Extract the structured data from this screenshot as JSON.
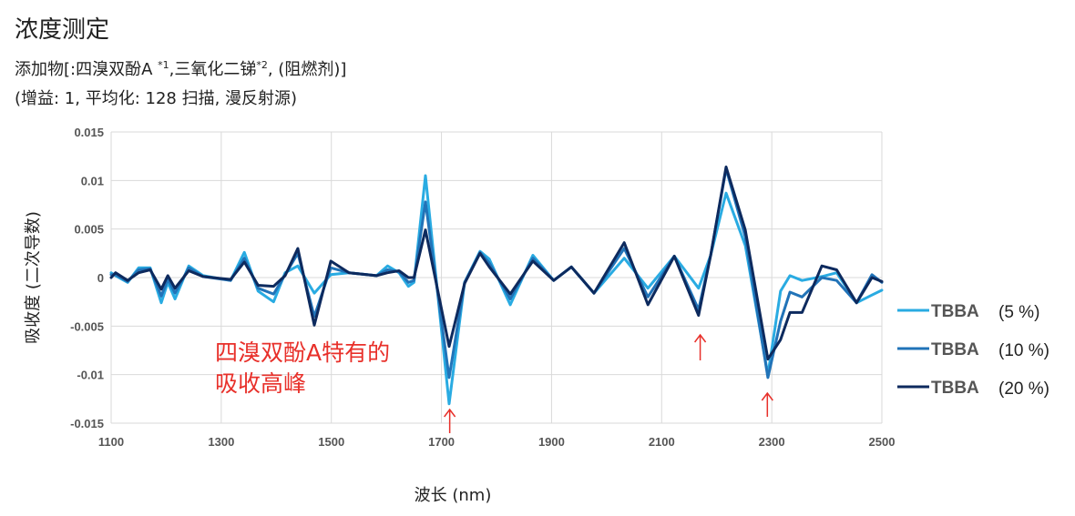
{
  "header": {
    "title": "浓度测定",
    "subtitle_parts": [
      "添加物[:四溴双酚A ",
      "*1",
      ",三氧化二锑",
      "*2",
      ", (阻燃剂)]"
    ],
    "conditions": "(增益: 1,  平均化: 128 扫描, 漫反射源)"
  },
  "annotation": {
    "line1": "四溴双酚A特有的",
    "line2": "吸收高峰",
    "color": "#e8302a",
    "arrow_x_nm": [
      1715,
      2170,
      2292
    ]
  },
  "chart_data": {
    "type": "line",
    "xlabel": "波长 (nm)",
    "ylabel": "吸收度 (二次导数)",
    "xlim": [
      1100,
      2500
    ],
    "ylim": [
      -0.015,
      0.015
    ],
    "xticks": [
      1100,
      1300,
      1500,
      1700,
      1900,
      2100,
      2300,
      2500
    ],
    "xtick_labels": [
      "1100",
      "1300",
      "1500",
      "1700",
      "1900",
      "2100",
      "2300",
      "2500"
    ],
    "yticks": [
      0.015,
      0.01,
      0.005,
      0,
      -0.005,
      -0.01,
      -0.015
    ],
    "ytick_labels": [
      "0.015",
      "0.01",
      "0.005",
      "0",
      "-0.005",
      "-0.01",
      "-0.015"
    ],
    "grid": true,
    "legend_position": "right",
    "x": [
      1100,
      1108,
      1130,
      1150,
      1171,
      1191,
      1203,
      1216,
      1241,
      1267,
      1317,
      1342,
      1367,
      1395,
      1416,
      1439,
      1469,
      1499,
      1532,
      1582,
      1602,
      1623,
      1640,
      1650,
      1671,
      1714,
      1742,
      1770,
      1787,
      1825,
      1866,
      1904,
      1936,
      1977,
      2032,
      2075,
      2123,
      2167,
      2189,
      2217,
      2252,
      2293,
      2316,
      2333,
      2355,
      2391,
      2418,
      2454,
      2482,
      2500
    ],
    "series": [
      {
        "name": "TBBA",
        "conc": "(5 %)",
        "color": "#29abe2",
        "values": [
          0.0005,
          0.0002,
          -0.0005,
          0.001,
          0.001,
          -0.0026,
          -0.0005,
          -0.0022,
          0.0012,
          0.0002,
          -0.0003,
          0.0026,
          -0.0014,
          -0.0025,
          0.0005,
          0.0012,
          -0.0016,
          0.0003,
          0.0005,
          0.0002,
          0.0012,
          0.0005,
          -0.0009,
          -0.0005,
          0.0105,
          -0.013,
          -0.0005,
          0.0027,
          0.0019,
          -0.0028,
          0.0023,
          -0.0003,
          0.0011,
          -0.0016,
          0.002,
          -0.0011,
          0.0022,
          -0.0011,
          0.0023,
          0.0087,
          0.0033,
          -0.01,
          -0.0014,
          0.0002,
          -0.0003,
          0.0001,
          0.0005,
          -0.0026,
          -0.0018,
          -0.0013
        ]
      },
      {
        "name": "TBBA",
        "conc": "(10 %)",
        "color": "#2173b8",
        "values": [
          0.0003,
          0.0003,
          -0.0004,
          0.0008,
          0.0009,
          -0.0019,
          -0.0002,
          -0.0016,
          0.001,
          0.0001,
          -0.0003,
          0.002,
          -0.0011,
          -0.0017,
          0.0003,
          0.0025,
          -0.004,
          0.001,
          0.0005,
          0.0002,
          0.0008,
          0.0006,
          -0.0005,
          -0.0003,
          0.0078,
          -0.0103,
          -0.0005,
          0.0026,
          0.0015,
          -0.0022,
          0.002,
          -0.0003,
          0.0011,
          -0.0016,
          0.003,
          -0.002,
          0.0022,
          -0.0033,
          0.0023,
          0.0112,
          0.0042,
          -0.0103,
          -0.0045,
          -0.0015,
          -0.002,
          0.0,
          -0.0003,
          -0.0026,
          0.0003,
          -0.0005
        ]
      },
      {
        "name": "TBBA",
        "conc": "(20 %)",
        "color": "#0d2a5e",
        "values": [
          0,
          0.0005,
          -0.0003,
          0.0005,
          0.0008,
          -0.0012,
          0.0002,
          -0.0011,
          0.0007,
          0.0001,
          -0.0002,
          0.0016,
          -0.0008,
          -0.0009,
          0.0002,
          0.003,
          -0.0049,
          0.0017,
          0.0005,
          0.0002,
          0.0005,
          0.0007,
          0,
          0,
          0.0049,
          -0.0071,
          -0.0006,
          0.0025,
          0.0011,
          -0.0017,
          0.0017,
          -0.0003,
          0.0011,
          -0.0016,
          0.0036,
          -0.0028,
          0.0022,
          -0.0039,
          0.0023,
          0.0114,
          0.0049,
          -0.0084,
          -0.0064,
          -0.0036,
          -0.0036,
          0.0012,
          0.0008,
          -0.0026,
          0,
          -0.0004
        ]
      }
    ]
  }
}
